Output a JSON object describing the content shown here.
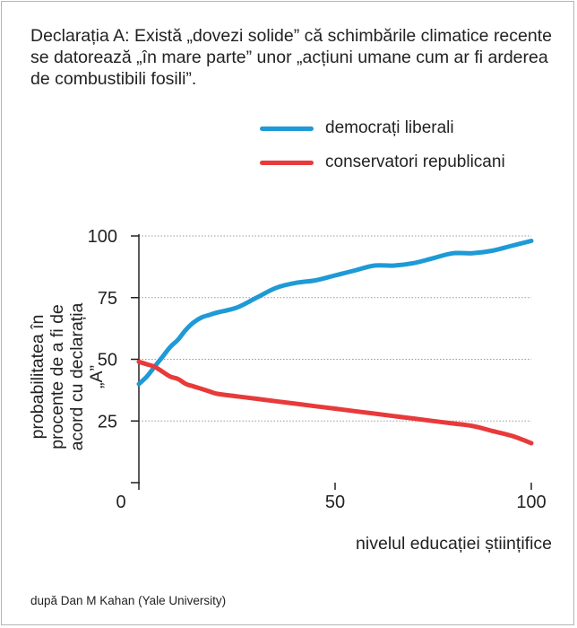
{
  "statement": "Declarația A: Există „dovezi solide” că schimbările climatice recente se datorează „în mare parte” unor „acțiuni umane cum ar fi arderea de combustibili fosili”.",
  "credit": "după Dan M Kahan (Yale University)",
  "chart_data": {
    "type": "line",
    "xlabel": "nivelul educației științifice",
    "ylabel": "probabilitatea în procente de a fi de acord cu declarația „A”",
    "xlim": [
      0,
      100
    ],
    "ylim": [
      0,
      100
    ],
    "x_ticks": [
      "0",
      "50",
      "100"
    ],
    "y_ticks": [
      "25",
      "50",
      "75",
      "100"
    ],
    "grid": "horizontal dotted",
    "legend": "top-right",
    "series": [
      {
        "name": "democrați liberali",
        "color": "#1e9ad6",
        "x": [
          0,
          2,
          4,
          6,
          8,
          10,
          12,
          14,
          16,
          18,
          20,
          25,
          30,
          35,
          40,
          45,
          50,
          55,
          60,
          65,
          70,
          75,
          80,
          85,
          90,
          95,
          100
        ],
        "y": [
          40,
          43,
          47,
          51,
          55,
          58,
          62,
          65,
          67,
          68,
          69,
          71,
          75,
          79,
          81,
          82,
          84,
          86,
          88,
          88,
          89,
          91,
          93,
          93,
          94,
          96,
          98
        ]
      },
      {
        "name": "conservatori republicani",
        "color": "#e83a3a",
        "x": [
          0,
          2,
          4,
          6,
          8,
          10,
          12,
          14,
          16,
          18,
          20,
          25,
          30,
          35,
          40,
          45,
          50,
          55,
          60,
          65,
          70,
          75,
          80,
          85,
          90,
          95,
          100
        ],
        "y": [
          49,
          48,
          47,
          45,
          43,
          42,
          40,
          39,
          38,
          37,
          36,
          35,
          34,
          33,
          32,
          31,
          30,
          29,
          28,
          27,
          26,
          25,
          24,
          23,
          21,
          19,
          16
        ]
      }
    ]
  }
}
